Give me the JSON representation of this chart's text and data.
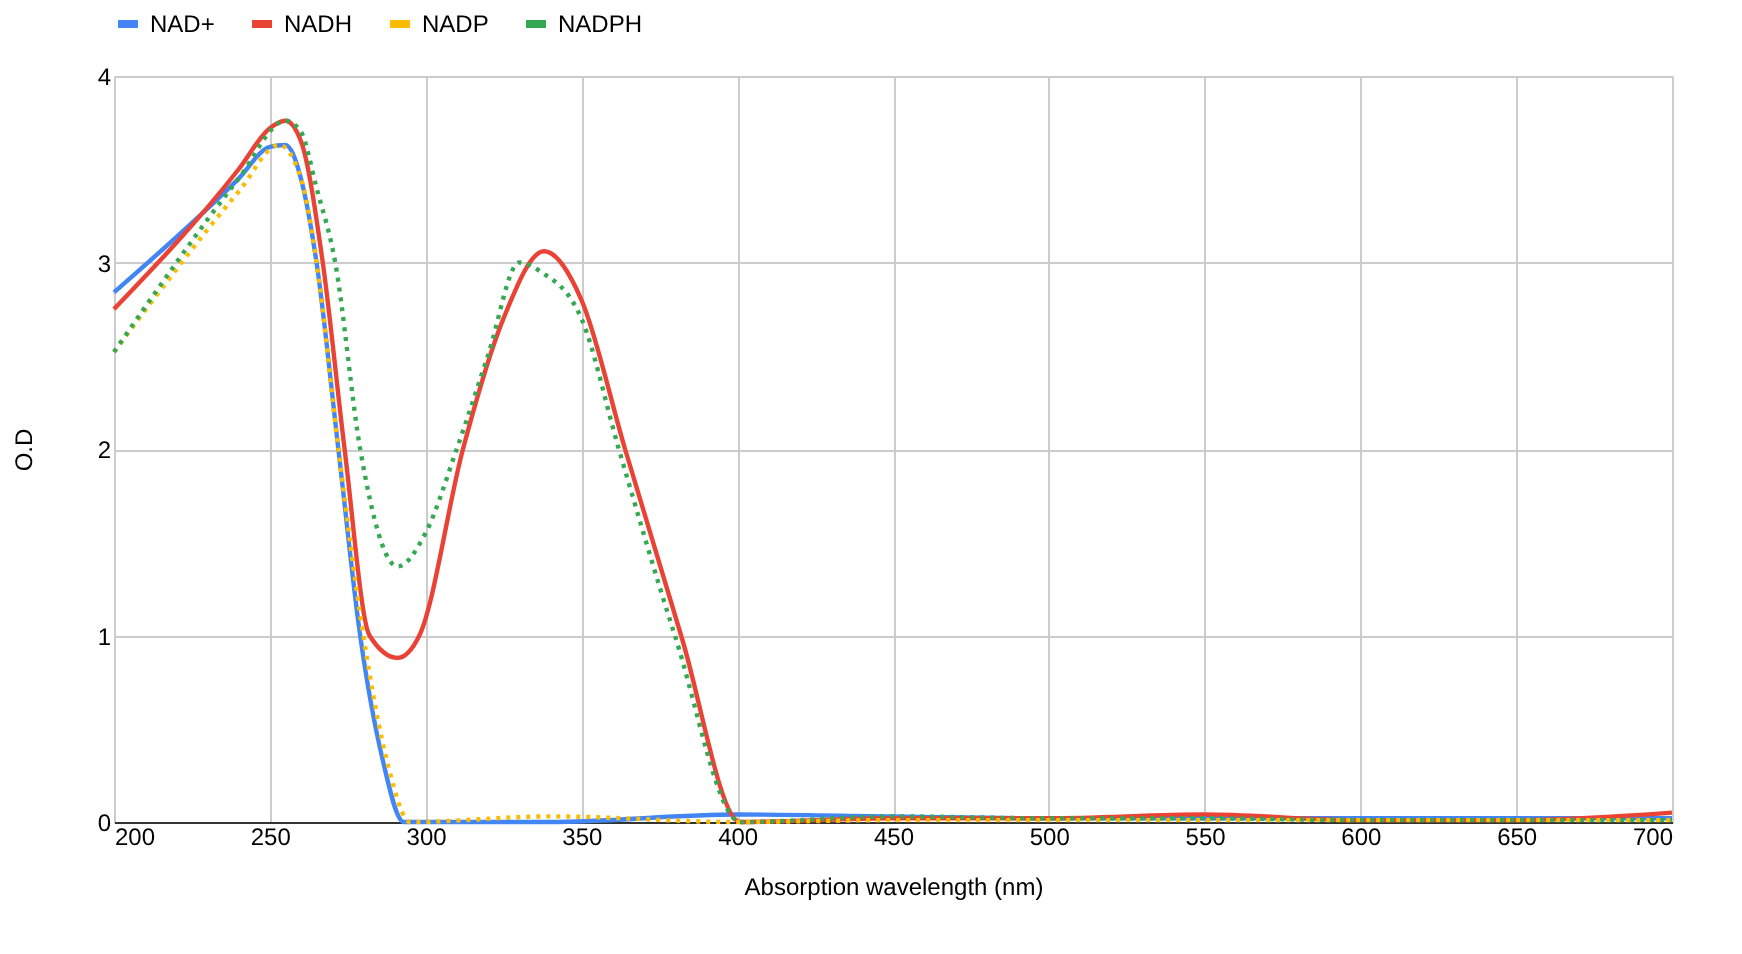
{
  "chart_data": {
    "type": "line",
    "xlabel": "Absorption wavelength (nm)",
    "ylabel": "O.D",
    "xlim": [
      200,
      700
    ],
    "ylim": [
      0,
      4
    ],
    "xticks": [
      200,
      250,
      300,
      350,
      400,
      450,
      500,
      550,
      600,
      650,
      700
    ],
    "yticks": [
      0,
      1,
      2,
      3,
      4
    ],
    "grid": true,
    "legend": "top",
    "marker": "none",
    "series": [
      {
        "name": "NAD+",
        "color": "#4285f4",
        "line_style": "solid",
        "x": [
          200,
          240,
          250,
          255,
          260,
          265,
          272,
          279,
          286,
          293,
          300,
          340,
          400,
          450,
          500,
          550,
          600,
          650,
          700
        ],
        "values": [
          2.84,
          3.45,
          3.62,
          3.63,
          3.45,
          3.0,
          2.0,
          1.0,
          0.35,
          0,
          0,
          0,
          0.04,
          0.03,
          0.02,
          0.02,
          0.02,
          0.02,
          0.02
        ]
      },
      {
        "name": "NADH",
        "color": "#ea4335",
        "line_style": "solid",
        "x": [
          200,
          240,
          250,
          255,
          260,
          267,
          274,
          282,
          291,
          298,
          312,
          325,
          338,
          350,
          364,
          382,
          401,
          450,
          500,
          550,
          600,
          650,
          700
        ],
        "values": [
          2.75,
          3.5,
          3.72,
          3.76,
          3.65,
          3.0,
          2.0,
          1.0,
          0.88,
          1.0,
          2.0,
          2.7,
          3.06,
          2.8,
          2.0,
          1.0,
          0,
          0.02,
          0.02,
          0.04,
          0.01,
          0.01,
          0.05
        ]
      },
      {
        "name": "NADP",
        "color": "#fbbc04",
        "line_style": "dotted",
        "x": [
          200,
          240,
          253,
          260,
          265,
          272,
          280,
          288,
          295,
          340,
          400,
          450,
          500,
          550,
          600,
          650,
          700
        ],
        "values": [
          2.52,
          3.38,
          3.63,
          3.45,
          3.0,
          2.0,
          1.0,
          0.3,
          0,
          0.03,
          0,
          0.01,
          0.01,
          0.01,
          0.01,
          0.01,
          0.01
        ]
      },
      {
        "name": "NADPH",
        "color": "#34a853",
        "line_style": "dotted",
        "x": [
          200,
          240,
          255,
          260,
          265,
          271,
          279,
          291,
          300,
          310,
          320,
          330,
          337,
          350,
          362,
          380,
          401,
          450,
          500,
          550,
          600,
          650,
          700
        ],
        "values": [
          2.52,
          3.45,
          3.76,
          3.7,
          3.4,
          3.0,
          2.0,
          1.37,
          1.55,
          2.0,
          2.5,
          3.0,
          2.95,
          2.7,
          2.0,
          1.0,
          0,
          0.03,
          0.02,
          0.02,
          0.01,
          0.01,
          0.01
        ]
      }
    ]
  }
}
